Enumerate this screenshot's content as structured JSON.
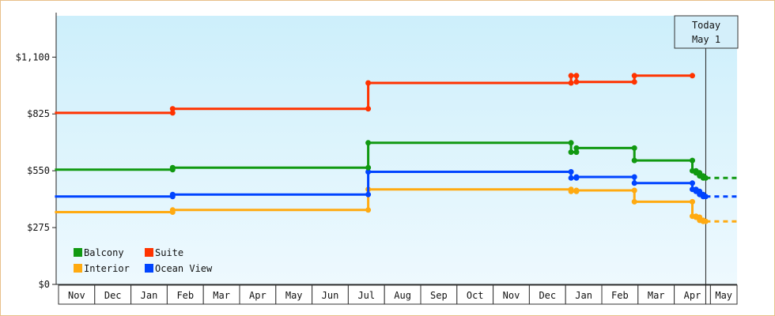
{
  "chart_data": {
    "type": "line",
    "step": true,
    "title": "",
    "xlabel": "",
    "ylabel": "",
    "ylim": [
      0,
      1300
    ],
    "yticks": [
      {
        "value": 0,
        "label": "$0"
      },
      {
        "value": 275,
        "label": "$275"
      },
      {
        "value": 550,
        "label": "$550"
      },
      {
        "value": 825,
        "label": "$825"
      },
      {
        "value": 1100,
        "label": "$1,100"
      }
    ],
    "x_months": [
      "Nov",
      "Dec",
      "Jan",
      "Feb",
      "Mar",
      "Apr",
      "May",
      "Jun",
      "Jul",
      "Aug",
      "Sep",
      "Oct",
      "Nov",
      "Dec",
      "Jan",
      "Feb",
      "Mar",
      "Apr",
      "May"
    ],
    "today": {
      "label_line1": "Today",
      "label_line2": "May 1",
      "x": 17.87
    },
    "grid": false,
    "legend_position": "bottom-left",
    "background_gradient": [
      "#cdeffb",
      "#eef9fe"
    ],
    "series": [
      {
        "name": "Suite",
        "color": "#ff3300",
        "points": [
          [
            -0.1,
            830
          ],
          [
            3.15,
            830
          ],
          [
            3.15,
            850
          ],
          [
            8.55,
            850
          ],
          [
            8.55,
            975
          ],
          [
            14.15,
            975
          ],
          [
            14.15,
            1010
          ],
          [
            14.3,
            1010
          ],
          [
            14.3,
            980
          ],
          [
            15.9,
            980
          ],
          [
            15.9,
            1010
          ],
          [
            17.5,
            1010
          ]
        ],
        "projection": null
      },
      {
        "name": "Balcony",
        "color": "#119911",
        "points": [
          [
            -0.1,
            555
          ],
          [
            3.15,
            555
          ],
          [
            3.15,
            565
          ],
          [
            8.55,
            565
          ],
          [
            8.55,
            685
          ],
          [
            14.15,
            685
          ],
          [
            14.15,
            640
          ],
          [
            14.3,
            640
          ],
          [
            14.3,
            660
          ],
          [
            15.9,
            660
          ],
          [
            15.9,
            600
          ],
          [
            17.5,
            600
          ],
          [
            17.5,
            550
          ],
          [
            17.6,
            550
          ],
          [
            17.6,
            540
          ],
          [
            17.7,
            540
          ],
          [
            17.7,
            525
          ],
          [
            17.8,
            525
          ],
          [
            17.8,
            515
          ],
          [
            17.87,
            515
          ]
        ],
        "projection": [
          [
            17.87,
            515
          ],
          [
            18.8,
            515
          ]
        ]
      },
      {
        "name": "Interior",
        "color": "#ffaa11",
        "points": [
          [
            -0.1,
            350
          ],
          [
            3.15,
            350
          ],
          [
            3.15,
            360
          ],
          [
            8.55,
            360
          ],
          [
            8.55,
            460
          ],
          [
            14.15,
            460
          ],
          [
            14.15,
            450
          ],
          [
            14.3,
            450
          ],
          [
            14.3,
            455
          ],
          [
            15.9,
            455
          ],
          [
            15.9,
            400
          ],
          [
            17.5,
            400
          ],
          [
            17.5,
            330
          ],
          [
            17.6,
            330
          ],
          [
            17.6,
            325
          ],
          [
            17.7,
            325
          ],
          [
            17.7,
            310
          ],
          [
            17.8,
            310
          ],
          [
            17.8,
            305
          ],
          [
            17.87,
            305
          ]
        ],
        "projection": [
          [
            17.87,
            305
          ],
          [
            18.8,
            305
          ]
        ]
      },
      {
        "name": "Ocean View",
        "color": "#0044ff",
        "points": [
          [
            -0.1,
            425
          ],
          [
            3.15,
            425
          ],
          [
            3.15,
            435
          ],
          [
            8.55,
            435
          ],
          [
            8.55,
            545
          ],
          [
            14.15,
            545
          ],
          [
            14.15,
            515
          ],
          [
            14.3,
            515
          ],
          [
            14.3,
            520
          ],
          [
            15.9,
            520
          ],
          [
            15.9,
            490
          ],
          [
            17.5,
            490
          ],
          [
            17.5,
            460
          ],
          [
            17.6,
            460
          ],
          [
            17.6,
            450
          ],
          [
            17.7,
            450
          ],
          [
            17.7,
            435
          ],
          [
            17.8,
            435
          ],
          [
            17.8,
            425
          ],
          [
            17.87,
            425
          ]
        ],
        "projection": [
          [
            17.87,
            425
          ],
          [
            18.8,
            425
          ]
        ]
      }
    ],
    "legend_order": [
      "Balcony",
      "Suite",
      "Interior",
      "Ocean View"
    ]
  }
}
